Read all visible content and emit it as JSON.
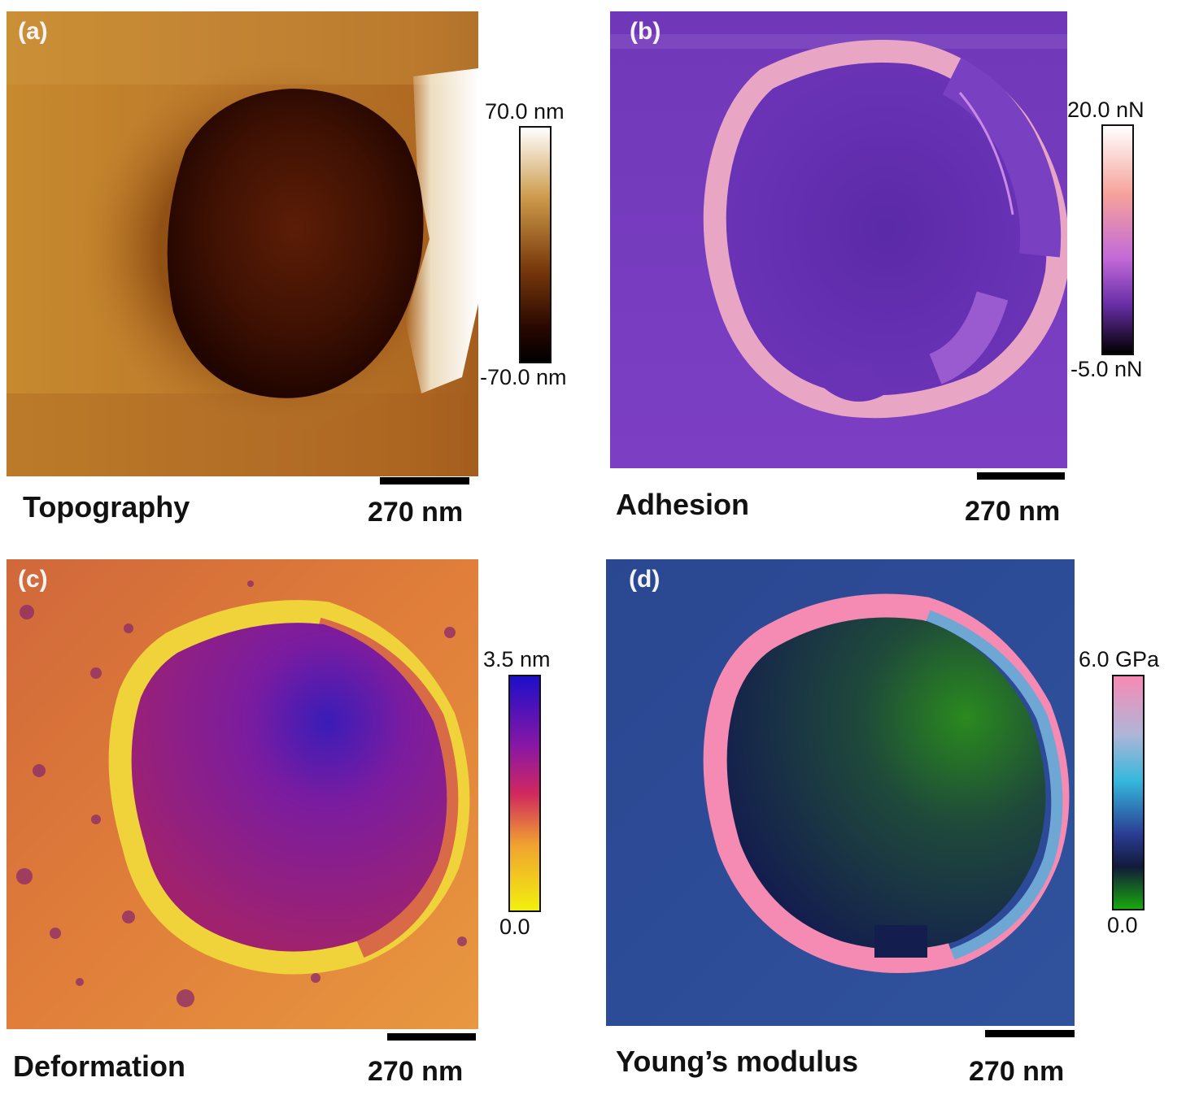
{
  "panels": [
    {
      "letter": "(a)",
      "caption": "Topography",
      "scale_label": "270 nm",
      "colorbar": {
        "max": "70.0 nm",
        "min": "-70.0 nm",
        "colors": [
          "#ffffff",
          "#cc9a4a",
          "#7a3a0c",
          "#2a0800",
          "#000000"
        ]
      }
    },
    {
      "letter": "(b)",
      "caption": "Adhesion",
      "scale_label": "270 nm",
      "colorbar": {
        "max": "20.0 nN",
        "min": "-5.0 nN",
        "colors": [
          "#ffffff",
          "#f6a29a",
          "#c36ad8",
          "#6a2fa8",
          "#000000"
        ]
      }
    },
    {
      "letter": "(c)",
      "caption": "Deformation",
      "scale_label": "270 nm",
      "colorbar": {
        "max": "3.5 nm",
        "min": "0.0",
        "colors": [
          "#1c0fc8",
          "#8a17a4",
          "#d0285e",
          "#f0a230",
          "#f2f00e"
        ]
      }
    },
    {
      "letter": "(d)",
      "caption": "Young’s modulus",
      "scale_label": "270 nm",
      "colorbar": {
        "max": "6.0 GPa",
        "min": "0.0",
        "colors": [
          "#f78ab4",
          "#aeb6d8",
          "#34b8dc",
          "#2a3c92",
          "#121a3a",
          "#18a80e"
        ]
      }
    }
  ]
}
